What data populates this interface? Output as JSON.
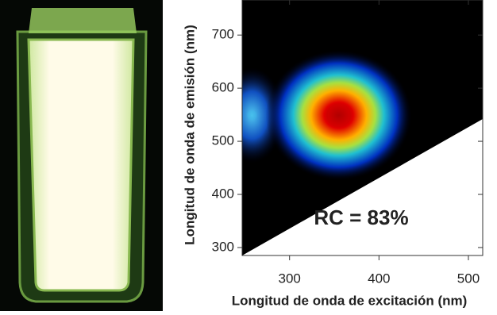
{
  "chart_data": {
    "type": "heatmap",
    "x_label": "Longitud de onda de excitación (nm)",
    "y_label": "Longitud de onda de emisión (nm)",
    "annotation": "RC = 83%",
    "xlim": [
      247,
      516
    ],
    "ylim": [
      285,
      766
    ],
    "xticks": [
      300,
      400,
      500
    ],
    "yticks": [
      300,
      400,
      500,
      600,
      700
    ],
    "peaks": [
      {
        "x": 258,
        "y": 549,
        "color": "#3fb6e8"
      },
      {
        "x": 355,
        "y": 549,
        "color": "#d80000"
      }
    ]
  }
}
